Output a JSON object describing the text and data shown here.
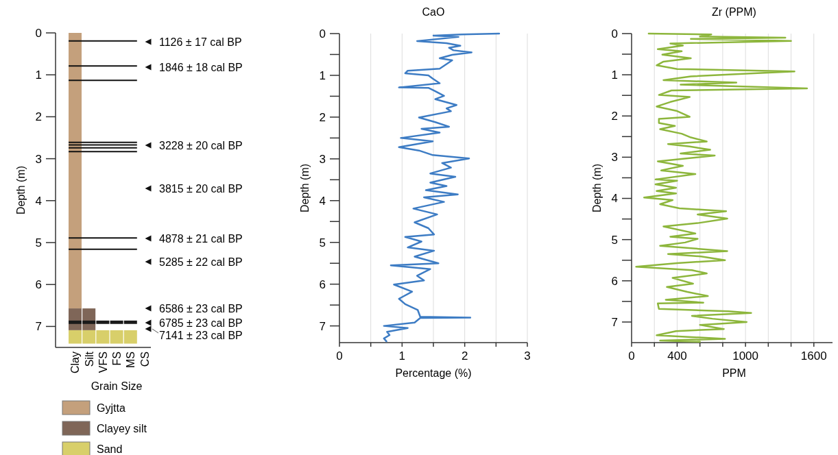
{
  "chart_data": [
    {
      "type": "bar",
      "xlabel": "Grain Size",
      "ylabel": "Depth (m)",
      "categories": [
        "Clay",
        "Silt",
        "VFS",
        "FS",
        "MS",
        "CS"
      ],
      "ylim": [
        7.5,
        0
      ],
      "yticks": [
        0,
        1,
        2,
        3,
        4,
        5,
        6,
        7
      ],
      "legend": "bottom",
      "series": [
        {
          "name": "Gyjtta",
          "color": "#c4a07c",
          "base": [
            0,
            null,
            null,
            null,
            null,
            null
          ],
          "values": [
            6.57,
            null,
            null,
            null,
            null,
            null
          ]
        },
        {
          "name": "Clayey silt",
          "color": "#7f6658",
          "base": [
            6.57,
            6.57,
            null,
            null,
            null,
            null
          ],
          "values": [
            0.52,
            0.52,
            null,
            null,
            null,
            null
          ]
        },
        {
          "name": "Sand",
          "color": "#d8cf6a",
          "base": [
            7.09,
            7.09,
            7.09,
            7.09,
            7.09,
            null
          ],
          "values": [
            0.32,
            0.32,
            0.32,
            0.32,
            0.32,
            null
          ]
        },
        {
          "color": "#1a1a1a",
          "base": [
            6.86,
            6.86,
            6.86,
            6.86,
            6.86,
            null
          ],
          "values": [
            0.08,
            0.08,
            0.08,
            0.08,
            0.08,
            null
          ]
        }
      ],
      "annotations": [
        "1126 ± 17 cal BP",
        "1846 ± 18 cal BP",
        "3228 ± 20 cal BP",
        "3815 ± 20 cal BP",
        "4878 ± 21 cal BP",
        "5285 ± 22 cal BP",
        "6586 ± 23 cal BP",
        "6785 ± 23 cal BP",
        "7141 ± 23 cal BP"
      ],
      "ref_lines": [
        {
          "axis": "y",
          "value": 0.19
        },
        {
          "axis": "y",
          "value": 0.79
        },
        {
          "axis": "y",
          "value": 1.13
        },
        {
          "axis": "y",
          "value": 2.61
        },
        {
          "axis": "y",
          "value": 2.67
        },
        {
          "axis": "y",
          "value": 2.74
        },
        {
          "axis": "y",
          "value": 2.83
        },
        {
          "axis": "y",
          "value": 4.89
        },
        {
          "axis": "y",
          "value": 5.16
        }
      ]
    },
    {
      "type": "line",
      "orientation": "horizontal",
      "title": "CaO",
      "xlabel": "Percentage (%)",
      "ylabel": "Depth (m)",
      "xlim": [
        0,
        3
      ],
      "xticks": [
        0,
        {
          "value": 0.5,
          "label": null
        },
        1,
        {
          "value": 1.5,
          "label": null
        },
        2,
        {
          "value": 2.5,
          "label": null
        },
        3
      ],
      "ylim": [
        7.4,
        0
      ],
      "yticks": [
        0,
        {
          "value": 0.5,
          "label": null
        },
        1,
        {
          "value": 1.5,
          "label": null
        },
        2,
        {
          "value": 2.5,
          "label": null
        },
        3,
        {
          "value": 3.5,
          "label": null
        },
        4,
        {
          "value": 4.5,
          "label": null
        },
        5,
        {
          "value": 5.5,
          "label": null
        },
        6,
        {
          "value": 6.5,
          "label": null
        },
        7
      ],
      "grid": "x",
      "series": [
        {
          "color": "#3d7cc4",
          "x": [
            0,
            0.02,
            0.05,
            0.08,
            0.18,
            0.23,
            0.29,
            0.34,
            0.4,
            0.45,
            0.51,
            0.59,
            0.64,
            0.73,
            0.84,
            0.89,
            0.95,
            1.0,
            1.08,
            1.19,
            1.29,
            1.3,
            1.38,
            1.49,
            1.57,
            1.71,
            1.79,
            1.86,
            2.01,
            2.12,
            2.23,
            2.28,
            2.37,
            2.5,
            2.58,
            2.72,
            2.8,
            2.91,
            2.99,
            3.1,
            3.21,
            3.35,
            3.43,
            3.57,
            3.65,
            3.75,
            3.85,
            3.92,
            4.03,
            4.19,
            4.33,
            4.52,
            4.66,
            4.81,
            4.87,
            4.98,
            5.12,
            5.2,
            5.34,
            5.5,
            5.55,
            5.64,
            5.8,
            5.91,
            6.01,
            6.18,
            6.35,
            6.48,
            6.62,
            6.78,
            6.8,
            6.81,
            6.92,
            7.0,
            7.05,
            7.14,
            7.22,
            7.3,
            7.37
          ],
          "values": [
            2.55,
            1.95,
            1.5,
            1.9,
            1.24,
            1.71,
            1.93,
            1.75,
            1.82,
            2.11,
            1.8,
            1.6,
            1.8,
            1.71,
            1.6,
            1.09,
            1.05,
            1.42,
            1.49,
            1.6,
            0.95,
            1.42,
            1.53,
            1.67,
            1.53,
            1.87,
            1.71,
            1.78,
            1.27,
            1.53,
            1.75,
            1.31,
            1.6,
            0.98,
            1.49,
            0.95,
            1.27,
            1.49,
            2.07,
            1.64,
            1.78,
            1.45,
            1.85,
            1.45,
            1.71,
            1.38,
            1.89,
            1.35,
            1.67,
            1.18,
            1.56,
            1.2,
            1.42,
            1.51,
            1.05,
            1.31,
            1.09,
            1.51,
            1.2,
            1.58,
            0.82,
            1.45,
            1.24,
            1.35,
            0.87,
            1.16,
            0.95,
            1.05,
            1.25,
            1.29,
            2.09,
            1.29,
            1.2,
            0.71,
            1.09,
            0.76,
            0.8,
            0.71,
            0.75
          ]
        }
      ]
    },
    {
      "type": "line",
      "orientation": "horizontal",
      "title": "Zr (PPM)",
      "xlabel": "PPM",
      "ylabel": "Depth (m)",
      "xlim": [
        0,
        1800
      ],
      "xticks": [
        0,
        {
          "value": 200,
          "label": null
        },
        400,
        {
          "value": 600,
          "label": null
        },
        {
          "value": 800,
          "label": null
        },
        1000,
        {
          "value": 1200,
          "label": null
        },
        {
          "value": 1400,
          "label": null
        },
        1600,
        {
          "value": 1800,
          "label": null
        }
      ],
      "ylim": [
        7.5,
        0
      ],
      "yticks": [
        0,
        {
          "value": 0.5,
          "label": null
        },
        1,
        {
          "value": 1.5,
          "label": null
        },
        2,
        {
          "value": 2.5,
          "label": null
        },
        3,
        {
          "value": 3.5,
          "label": null
        },
        4,
        {
          "value": 4.5,
          "label": null
        },
        5,
        {
          "value": 5.5,
          "label": null
        },
        6,
        {
          "value": 6.5,
          "label": null
        },
        7
      ],
      "grid": "x",
      "series": [
        {
          "color": "#8db63c",
          "x": [
            0,
            0.02,
            0.07,
            0.1,
            0.13,
            0.18,
            0.24,
            0.29,
            0.38,
            0.43,
            0.51,
            0.6,
            0.68,
            0.77,
            0.86,
            0.92,
            0.97,
            1.04,
            1.13,
            1.19,
            1.24,
            1.33,
            1.38,
            1.49,
            1.54,
            1.66,
            1.77,
            1.88,
            2.02,
            2.07,
            2.17,
            2.24,
            2.32,
            2.43,
            2.52,
            2.62,
            2.68,
            2.74,
            2.82,
            2.91,
            2.96,
            3.1,
            3.21,
            3.32,
            3.41,
            3.54,
            3.57,
            3.66,
            3.74,
            3.82,
            3.88,
            3.98,
            4.04,
            4.14,
            4.24,
            4.31,
            4.39,
            4.49,
            4.6,
            4.68,
            4.85,
            4.93,
            4.98,
            5.07,
            5.15,
            5.28,
            5.35,
            5.41,
            5.5,
            5.57,
            5.66,
            5.74,
            5.82,
            5.93,
            6.07,
            6.15,
            6.27,
            6.37,
            6.46,
            6.53,
            6.55,
            6.68,
            6.74,
            6.78,
            6.85,
            6.92,
            7.0,
            7.07,
            7.17,
            7.22,
            7.32,
            7.41,
            7.45,
            7.48
          ],
          "values": [
            150,
            700,
            600,
            1350,
            520,
            1400,
            340,
            450,
            230,
            440,
            270,
            520,
            280,
            220,
            400,
            1430,
            1040,
            520,
            280,
            920,
            430,
            1540,
            350,
            240,
            510,
            340,
            220,
            400,
            510,
            240,
            240,
            380,
            250,
            440,
            520,
            660,
            320,
            510,
            690,
            430,
            730,
            230,
            450,
            260,
            560,
            210,
            400,
            210,
            390,
            220,
            390,
            110,
            360,
            250,
            420,
            830,
            580,
            840,
            580,
            280,
            560,
            340,
            580,
            470,
            250,
            840,
            320,
            610,
            820,
            400,
            40,
            530,
            660,
            360,
            540,
            310,
            490,
            670,
            300,
            630,
            230,
            240,
            850,
            1050,
            530,
            710,
            1010,
            600,
            810,
            390,
            220,
            820,
            250,
            600
          ]
        }
      ]
    }
  ]
}
